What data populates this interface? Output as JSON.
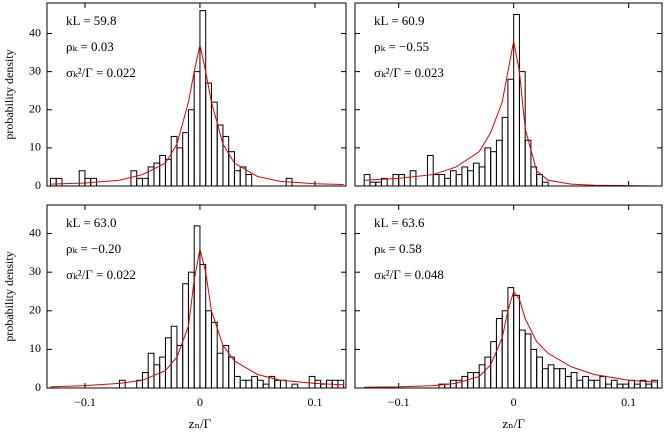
{
  "chart_data": [
    {
      "type": "histogram",
      "annotations": [
        "kL = 59.8",
        "ρₖ = 0.03",
        "σₖ²/Γ = 0.022"
      ],
      "ylabel": "probability density",
      "bins": [
        -0.13,
        -0.125,
        -0.12,
        -0.115,
        -0.11,
        -0.105,
        -0.1,
        -0.095,
        -0.09,
        -0.085,
        -0.08,
        -0.075,
        -0.07,
        -0.065,
        -0.06,
        -0.055,
        -0.05,
        -0.045,
        -0.04,
        -0.035,
        -0.03,
        -0.025,
        -0.02,
        -0.015,
        -0.01,
        -0.005,
        0,
        0.005,
        0.01,
        0.015,
        0.02,
        0.025,
        0.03,
        0.035,
        0.04,
        0.045,
        0.05,
        0.055,
        0.06,
        0.065,
        0.07,
        0.075,
        0.08,
        0.085,
        0.09,
        0.095,
        0.1,
        0.105,
        0.11,
        0.115,
        0.12,
        0.125
      ],
      "values": [
        2,
        2,
        0,
        0,
        0,
        4,
        2,
        2,
        0,
        0,
        0,
        0,
        0,
        0,
        4,
        2,
        2,
        5,
        6,
        8,
        7,
        13,
        10,
        14,
        20,
        30,
        46,
        27,
        22,
        16,
        13,
        9,
        4,
        5,
        3,
        0,
        0,
        0,
        0,
        0,
        0,
        2,
        0,
        0,
        0,
        0,
        0,
        0,
        0,
        0,
        0
      ],
      "color": "#000000",
      "fit": {
        "color": "#e00000",
        "x": [
          -0.13,
          -0.1,
          -0.07,
          -0.05,
          -0.03,
          -0.02,
          -0.01,
          -0.005,
          0,
          0.005,
          0.01,
          0.02,
          0.03,
          0.05,
          0.07,
          0.1,
          0.125
        ],
        "values": [
          0.5,
          0.8,
          1.5,
          3,
          6,
          11,
          22,
          30,
          37,
          30,
          22,
          11,
          6,
          2.5,
          1.2,
          0.6,
          0.4
        ]
      },
      "xlim": [
        -0.133,
        0.127
      ],
      "ylim": [
        0,
        48
      ],
      "xticks": [
        -0.1,
        0,
        0.1
      ],
      "yticks": [
        0,
        10,
        20,
        30,
        40
      ],
      "xtick_labels": false,
      "ytick_labels": true
    },
    {
      "type": "histogram",
      "annotations": [
        "kL = 60.9",
        "ρₖ = −0.55",
        "σₖ²/Γ = 0.023"
      ],
      "bins": [
        -0.13,
        -0.125,
        -0.12,
        -0.115,
        -0.11,
        -0.105,
        -0.1,
        -0.095,
        -0.09,
        -0.085,
        -0.08,
        -0.075,
        -0.07,
        -0.065,
        -0.06,
        -0.055,
        -0.05,
        -0.045,
        -0.04,
        -0.035,
        -0.03,
        -0.025,
        -0.02,
        -0.015,
        -0.01,
        -0.005,
        0,
        0.005,
        0.01,
        0.015,
        0.02,
        0.025,
        0.03,
        0.035,
        0.04,
        0.045,
        0.05,
        0.055,
        0.06,
        0.065,
        0.07,
        0.075,
        0.08,
        0.085,
        0.09,
        0.095,
        0.1,
        0.105,
        0.11,
        0.115,
        0.12,
        0.125
      ],
      "values": [
        3,
        1,
        1,
        2,
        0,
        3,
        3,
        0,
        4,
        0,
        0,
        8,
        3,
        3,
        2,
        4,
        3,
        5,
        4,
        6,
        5,
        10,
        9,
        12,
        18,
        28,
        45,
        30,
        12,
        5,
        3,
        1,
        0,
        0,
        0,
        0,
        0,
        0,
        0,
        0,
        0,
        0,
        0,
        0,
        0,
        0,
        0,
        0,
        0,
        0,
        0
      ],
      "color": "#000000",
      "fit": {
        "color": "#e00000",
        "x": [
          -0.13,
          -0.1,
          -0.07,
          -0.05,
          -0.03,
          -0.02,
          -0.01,
          -0.005,
          0,
          0.005,
          0.01,
          0.02,
          0.03,
          0.05,
          0.07,
          0.1,
          0.125
        ],
        "values": [
          1.5,
          2,
          3,
          5,
          9,
          14,
          22,
          30,
          38,
          30,
          15,
          4,
          1.5,
          0.5,
          0.2,
          0.1,
          0
        ]
      },
      "xlim": [
        -0.138,
        0.129
      ],
      "ylim": [
        0,
        48
      ],
      "xticks": [
        -0.1,
        0,
        0.1
      ],
      "yticks": [
        0,
        10,
        20,
        30,
        40
      ],
      "xtick_labels": false,
      "ytick_labels": false
    },
    {
      "type": "histogram",
      "annotations": [
        "kL = 63.0",
        "ρₖ = −0.20",
        "σₖ²/Γ = 0.022"
      ],
      "ylabel": "probability density",
      "xlabel": "zₙ/Γ",
      "bins": [
        -0.13,
        -0.125,
        -0.12,
        -0.115,
        -0.11,
        -0.105,
        -0.1,
        -0.095,
        -0.09,
        -0.085,
        -0.08,
        -0.075,
        -0.07,
        -0.065,
        -0.06,
        -0.055,
        -0.05,
        -0.045,
        -0.04,
        -0.035,
        -0.03,
        -0.025,
        -0.02,
        -0.015,
        -0.01,
        -0.005,
        0,
        0.005,
        0.01,
        0.015,
        0.02,
        0.025,
        0.03,
        0.035,
        0.04,
        0.045,
        0.05,
        0.055,
        0.06,
        0.065,
        0.07,
        0.075,
        0.08,
        0.085,
        0.09,
        0.095,
        0.1,
        0.105,
        0.11,
        0.115,
        0.12,
        0.125
      ],
      "values": [
        0,
        0,
        0,
        0,
        0,
        0,
        0,
        0,
        0,
        0,
        0,
        0,
        2,
        0,
        0,
        2,
        4,
        9,
        6,
        8,
        13,
        16,
        11,
        27,
        30,
        42,
        32,
        20,
        17,
        9,
        11,
        8,
        3,
        2,
        2,
        3,
        2,
        1,
        3,
        2,
        2,
        0,
        1,
        0,
        0,
        3,
        2,
        1,
        2,
        2,
        2
      ],
      "color": "#000000",
      "fit": {
        "color": "#e00000",
        "x": [
          -0.13,
          -0.1,
          -0.07,
          -0.05,
          -0.03,
          -0.02,
          -0.01,
          -0.005,
          0,
          0.005,
          0.01,
          0.02,
          0.03,
          0.05,
          0.07,
          0.1,
          0.125
        ],
        "values": [
          0.3,
          0.6,
          1.2,
          2,
          4.5,
          8,
          16,
          28,
          36,
          30,
          20,
          11,
          7,
          3.5,
          2,
          1.2,
          0.8
        ]
      },
      "xlim": [
        -0.133,
        0.127
      ],
      "ylim": [
        0,
        47.4
      ],
      "xticks": [
        {
          "value": -0.1,
          "label": "−0.1"
        },
        0,
        0.1
      ],
      "yticks": [
        0,
        10,
        20,
        30,
        40
      ],
      "xtick_labels": true,
      "ytick_labels": true
    },
    {
      "type": "histogram",
      "annotations": [
        "kL = 63.6",
        "ρₖ = 0.58",
        "σₖ²/Γ = 0.048"
      ],
      "xlabel": "zₙ/Γ",
      "bins": [
        -0.13,
        -0.125,
        -0.12,
        -0.115,
        -0.11,
        -0.105,
        -0.1,
        -0.095,
        -0.09,
        -0.085,
        -0.08,
        -0.075,
        -0.07,
        -0.065,
        -0.06,
        -0.055,
        -0.05,
        -0.045,
        -0.04,
        -0.035,
        -0.03,
        -0.025,
        -0.02,
        -0.015,
        -0.01,
        -0.005,
        0,
        0.005,
        0.01,
        0.015,
        0.02,
        0.025,
        0.03,
        0.035,
        0.04,
        0.045,
        0.05,
        0.055,
        0.06,
        0.065,
        0.07,
        0.075,
        0.08,
        0.085,
        0.09,
        0.095,
        0.1,
        0.105,
        0.11,
        0.115,
        0.12,
        0.125
      ],
      "values": [
        0,
        0,
        0,
        0,
        0,
        0,
        0,
        0,
        0,
        0,
        0,
        0,
        0,
        1,
        1,
        2,
        2,
        3,
        4,
        4,
        6,
        8,
        12,
        18,
        20,
        26,
        24,
        15,
        14,
        10,
        8,
        5,
        6,
        5,
        5,
        3,
        4,
        2,
        3,
        2,
        2,
        3,
        1,
        2,
        1,
        1,
        2,
        1,
        2,
        1,
        2
      ],
      "color": "#000000",
      "fit": {
        "color": "#e00000",
        "x": [
          -0.13,
          -0.1,
          -0.07,
          -0.05,
          -0.03,
          -0.02,
          -0.01,
          -0.005,
          0,
          0.005,
          0.01,
          0.02,
          0.03,
          0.05,
          0.07,
          0.1,
          0.125
        ],
        "values": [
          0.2,
          0.3,
          0.6,
          1.2,
          3,
          6,
          13,
          20,
          25,
          23,
          18,
          12,
          9,
          5.5,
          3.5,
          2,
          1.5
        ]
      },
      "xlim": [
        -0.138,
        0.129
      ],
      "ylim": [
        0,
        47.4
      ],
      "xticks": [
        {
          "value": -0.1,
          "label": "−0.1"
        },
        0,
        0.1
      ],
      "yticks": [
        0,
        10,
        20,
        30,
        40
      ],
      "xtick_labels": true,
      "ytick_labels": false
    }
  ]
}
